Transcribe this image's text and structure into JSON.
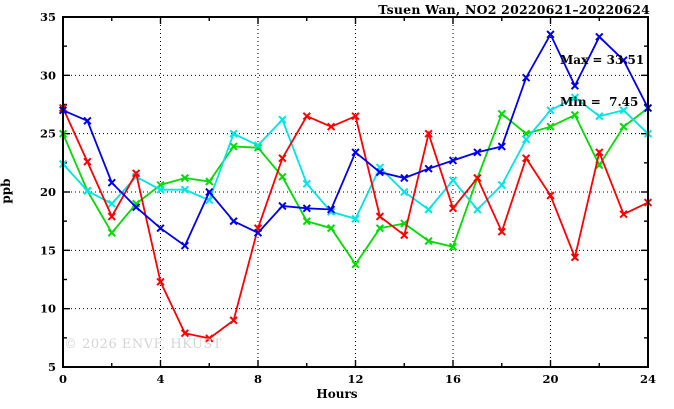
{
  "title": "Tsuen Wan, NO2 20220621–20220624",
  "annotation": {
    "max_label": "Max = 33.51",
    "min_label": "Min =  7.45"
  },
  "watermark": "© 2026 ENVF, HKUST",
  "chart_data": {
    "type": "line",
    "title": "Tsuen Wan, NO2 20220621–20220624",
    "xlabel": "Hours",
    "ylabel": "ppb",
    "xlim": [
      0,
      24
    ],
    "ylim": [
      5,
      35
    ],
    "xticks": [
      0,
      4,
      8,
      12,
      16,
      20,
      24
    ],
    "xminor": [
      2,
      6,
      10,
      14,
      18,
      22
    ],
    "yticks": [
      5,
      10,
      15,
      20,
      25,
      30,
      35
    ],
    "yminor": [
      7.5,
      12.5,
      17.5,
      22.5,
      27.5,
      32.5
    ],
    "grid": true,
    "legend": "none",
    "max": 33.51,
    "min": 7.45,
    "x": [
      0,
      1,
      2,
      3,
      4,
      5,
      6,
      7,
      8,
      9,
      10,
      11,
      12,
      13,
      14,
      15,
      16,
      17,
      18,
      19,
      20,
      21,
      22,
      23,
      24
    ],
    "series": [
      {
        "name": "green-line",
        "color": "#00dd00",
        "values": [
          25.0,
          20.1,
          16.5,
          19.0,
          20.6,
          21.2,
          20.9,
          23.9,
          23.8,
          21.3,
          17.5,
          16.9,
          13.8,
          16.9,
          17.3,
          15.8,
          15.3,
          21.2,
          26.7,
          25.0,
          25.6,
          26.6,
          22.3,
          25.6,
          27.2
        ]
      },
      {
        "name": "cyan-line",
        "color": "#00e5e5",
        "values": [
          22.4,
          20.1,
          19.0,
          21.3,
          20.2,
          20.2,
          19.3,
          25.0,
          24.0,
          26.2,
          20.7,
          18.3,
          17.7,
          22.1,
          20.0,
          18.5,
          21.0,
          18.5,
          20.6,
          24.5,
          27.0,
          28.1,
          26.5,
          27.0,
          25.0
        ]
      },
      {
        "name": "red-line",
        "color": "#ff0000",
        "values": [
          27.2,
          22.6,
          17.9,
          21.6,
          12.3,
          7.9,
          7.45,
          9.0,
          16.9,
          22.9,
          26.5,
          25.6,
          26.5,
          17.9,
          16.3,
          25.0,
          18.6,
          21.2,
          16.6,
          22.9,
          19.7,
          14.4,
          23.4,
          18.1,
          19.1
        ]
      },
      {
        "name": "blue-line",
        "color": "#0000ee",
        "values": [
          27.0,
          26.1,
          20.8,
          18.7,
          16.9,
          15.4,
          20.0,
          17.5,
          16.5,
          18.8,
          18.6,
          18.5,
          23.4,
          21.7,
          21.2,
          22.0,
          22.7,
          23.4,
          23.9,
          29.8,
          33.51,
          29.1,
          33.3,
          31.3,
          27.2
        ]
      }
    ]
  }
}
